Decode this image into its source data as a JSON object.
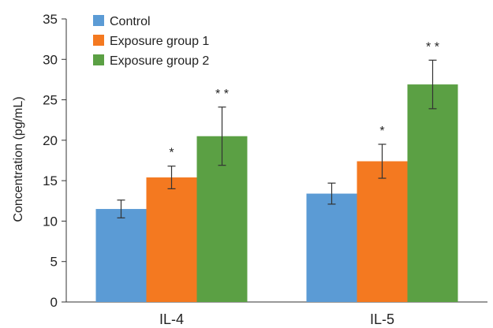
{
  "chart_data": {
    "type": "bar",
    "title": "",
    "xlabel": "",
    "ylabel": "Concentration (pg/mL)",
    "ylim": [
      0,
      35
    ],
    "yticks": [
      0,
      5,
      10,
      15,
      20,
      25,
      30,
      35
    ],
    "grid": false,
    "legend_position": "top-left",
    "categories": [
      "IL-4",
      "IL-5"
    ],
    "series": [
      {
        "name": "Control",
        "color": "#5b9bd5",
        "values": [
          11.5,
          13.4
        ],
        "errors": [
          1.1,
          1.3
        ],
        "significance": [
          "",
          ""
        ]
      },
      {
        "name": "Exposure group 1",
        "color": "#f47920",
        "values": [
          15.4,
          17.4
        ],
        "errors": [
          1.4,
          2.1
        ],
        "significance": [
          "*",
          "*"
        ]
      },
      {
        "name": "Exposure group 2",
        "color": "#5ba044",
        "values": [
          20.5,
          26.9
        ],
        "errors": [
          3.6,
          3.0
        ],
        "significance": [
          "**",
          "**"
        ]
      }
    ]
  }
}
